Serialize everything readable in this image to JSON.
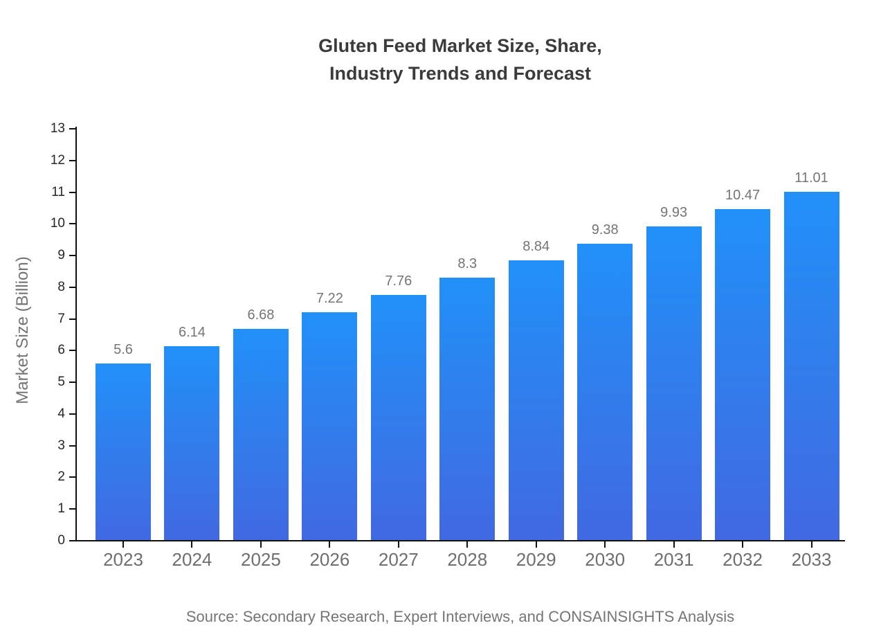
{
  "title": {
    "line1": "Gluten Feed Market Size, Share,",
    "line2": "Industry Trends and Forecast"
  },
  "source_text": "Source: Secondary Research, Expert Interviews, and CONSAINSIGHTS Analysis",
  "chart_data": {
    "type": "bar",
    "title": "Gluten Feed Market Size, Share, Industry Trends and Forecast",
    "xlabel": "",
    "ylabel": "Market Size (Billion)",
    "categories": [
      "2023",
      "2024",
      "2025",
      "2026",
      "2027",
      "2028",
      "2029",
      "2030",
      "2031",
      "2032",
      "2033"
    ],
    "values": [
      5.6,
      6.14,
      6.68,
      7.22,
      7.76,
      8.3,
      8.84,
      9.38,
      9.93,
      10.47,
      11.01
    ],
    "value_labels": [
      "5.6",
      "6.14",
      "6.68",
      "7.22",
      "7.76",
      "8.3",
      "8.84",
      "9.38",
      "9.93",
      "10.47",
      "11.01"
    ],
    "ylim": [
      0,
      13
    ],
    "yticks": [
      0,
      1,
      2,
      3,
      4,
      5,
      6,
      7,
      8,
      9,
      10,
      11,
      12,
      13
    ],
    "grid": false,
    "legend": null,
    "colors": {
      "bar_gradient_top": "#2191f8",
      "bar_gradient_bottom": "#4169e1",
      "axis": "#111111",
      "y_tick_label": "#262626",
      "x_tick_label": "#6e6e6e",
      "value_label": "#757575",
      "title": "#3b3b3b",
      "source": "#757575",
      "background": "#ffffff"
    }
  }
}
